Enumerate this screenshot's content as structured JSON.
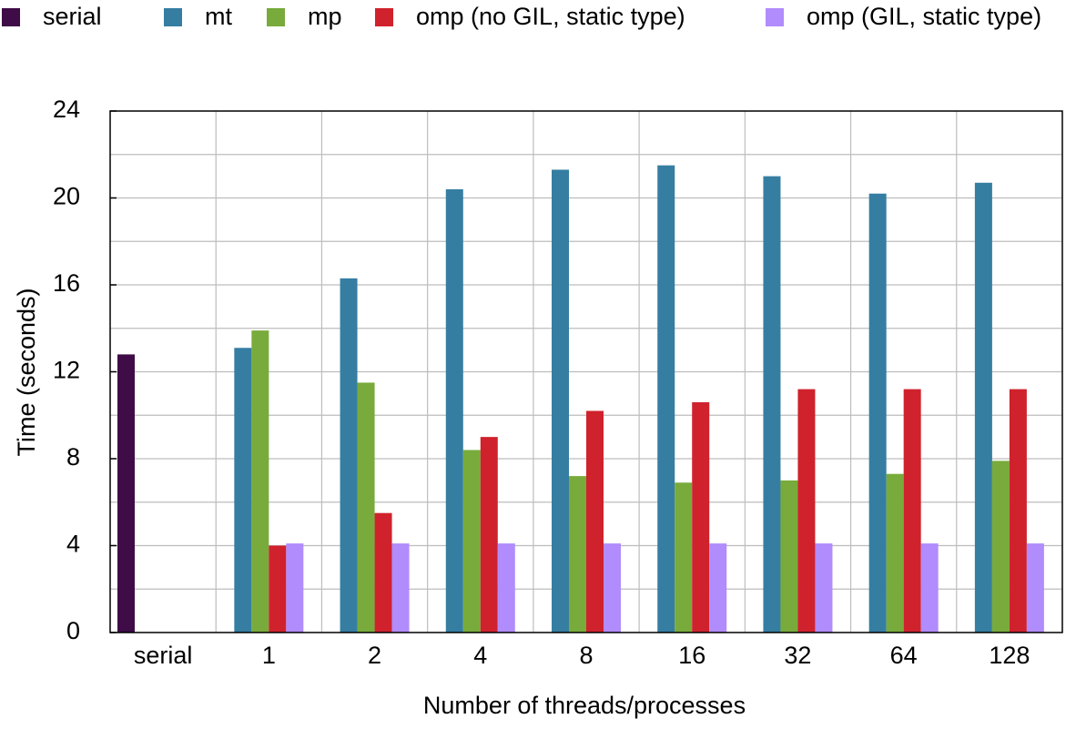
{
  "chart_data": {
    "type": "bar",
    "title": "",
    "xlabel": "Number of threads/processes",
    "ylabel": "Time (seconds)",
    "ylim": [
      0,
      24
    ],
    "yticks": [
      "0",
      "4",
      "8",
      "12",
      "16",
      "20",
      "24"
    ],
    "grid": true,
    "legend_position": "top",
    "categories": [
      "serial",
      "1",
      "2",
      "4",
      "8",
      "16",
      "32",
      "64",
      "128"
    ],
    "series": [
      {
        "name": "serial",
        "color": "#3f0c47",
        "values": [
          12.8,
          null,
          null,
          null,
          null,
          null,
          null,
          null,
          null
        ]
      },
      {
        "name": "mt",
        "color": "#357ea2",
        "values": [
          null,
          13.1,
          16.3,
          20.4,
          21.3,
          21.5,
          21.0,
          20.2,
          20.7
        ]
      },
      {
        "name": "mp",
        "color": "#78ab3b",
        "values": [
          null,
          13.9,
          11.5,
          8.4,
          7.2,
          6.9,
          7.0,
          7.3,
          7.9
        ]
      },
      {
        "name": "omp (no GIL, static type)",
        "color": "#d0222d",
        "values": [
          null,
          4.0,
          5.5,
          9.0,
          10.2,
          10.6,
          11.2,
          11.2,
          11.2
        ]
      },
      {
        "name": "omp (GIL, static type)",
        "color": "#b18cfc",
        "values": [
          null,
          4.1,
          4.1,
          4.1,
          4.1,
          4.1,
          4.1,
          4.1,
          4.1
        ]
      }
    ]
  }
}
